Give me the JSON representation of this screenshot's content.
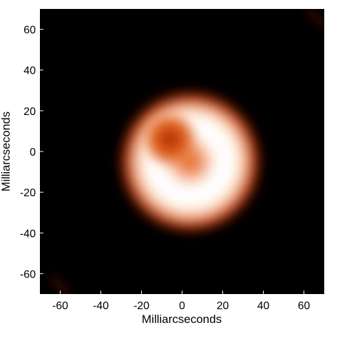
{
  "chart_data": {
    "type": "heatmap",
    "title": "",
    "xlabel": "Milliarcseconds",
    "ylabel": "Milliarcseconds",
    "xlim": [
      -70,
      70
    ],
    "ylim": [
      -70,
      70
    ],
    "xticks": [
      -60,
      -40,
      -20,
      0,
      20,
      40,
      60
    ],
    "yticks": [
      60,
      40,
      20,
      0,
      -20,
      -40,
      -60
    ],
    "xtick_labels": [
      "-60",
      "-40",
      "-20",
      "0",
      "20",
      "40",
      "60"
    ],
    "ytick_labels": [
      "60",
      "40",
      "20",
      "0",
      "-20",
      "-40",
      "-60"
    ],
    "grid": false,
    "colormap": [
      "#000000",
      "#5a0a00",
      "#b02a00",
      "#e0601e",
      "#f4a070",
      "#ffe0c0",
      "#ffffff"
    ],
    "ring": {
      "center": [
        4,
        -5
      ],
      "inner_radius": 10,
      "outer_radius": 34
    },
    "hot_spot": {
      "center": [
        -6,
        6
      ],
      "radius": 9
    },
    "faint_features": [
      {
        "center": [
          66,
          66
        ]
      },
      {
        "center": [
          -60,
          -66
        ]
      }
    ]
  }
}
